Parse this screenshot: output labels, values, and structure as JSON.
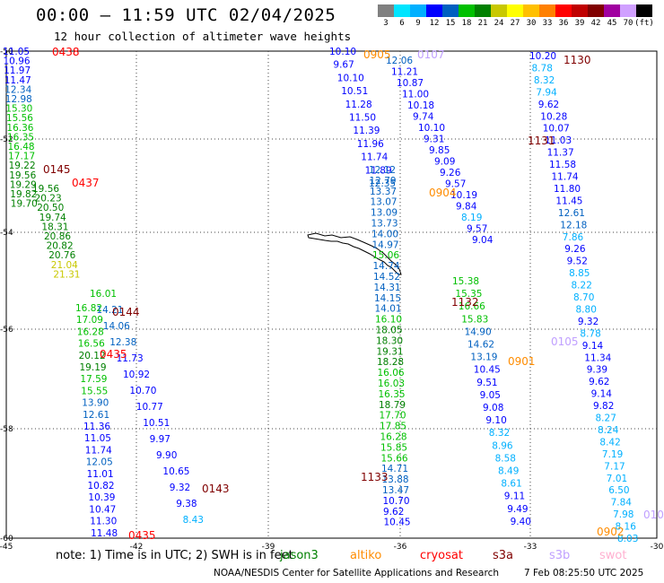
{
  "title": "00:00 – 11:59 UTC 02/04/2025",
  "subtitle": "12 hour collection of altimeter wave heights",
  "colorbar": {
    "labels": [
      "3",
      "6",
      "9",
      "12",
      "15",
      "18",
      "21",
      "24",
      "27",
      "30",
      "33",
      "36",
      "39",
      "42",
      "45",
      "70",
      "(ft)"
    ],
    "colors": [
      "#808080",
      "#00e5ff",
      "#00b0ff",
      "#0000ff",
      "#0060c0",
      "#00c000",
      "#008000",
      "#c8c800",
      "#ffff00",
      "#ffc000",
      "#ff8000",
      "#ff0000",
      "#c00000",
      "#800000",
      "#a000a0",
      "#d0a0ff",
      "#000000"
    ]
  },
  "map": {
    "lat_labels": [
      "-50",
      "-52",
      "-54",
      "-56",
      "-58",
      "-60"
    ],
    "lon_labels": [
      "-45",
      "-42",
      "-39",
      "-36",
      "-33",
      "-30"
    ]
  },
  "note": "note:  1) Time is in UTC; 2) SWH is in feet",
  "legend": [
    {
      "name": "jason3",
      "color": "#008000"
    },
    {
      "name": "altiko",
      "color": "#ff8c00"
    },
    {
      "name": "cryosat",
      "color": "#ff0000"
    },
    {
      "name": "s3a",
      "color": "#800000"
    },
    {
      "name": "s3b",
      "color": "#c0a0ff"
    },
    {
      "name": "swot",
      "color": "#ffb0d0"
    }
  ],
  "credit": "NOAA/NESDIS Center for Satellite Applications and Research",
  "timestamp": "7 Feb 08:25:50 UTC 2025",
  "pass_times": [
    {
      "text": "0438",
      "color": "#ff0000"
    },
    {
      "text": "0145",
      "color": "#800000"
    },
    {
      "text": "0437",
      "color": "#ff0000"
    },
    {
      "text": "0144",
      "color": "#800000"
    },
    {
      "text": "0435",
      "color": "#ff0000"
    },
    {
      "text": "0143",
      "color": "#800000"
    },
    {
      "text": "0435",
      "color": "#ff0000"
    },
    {
      "text": "0905",
      "color": "#ff8c00"
    },
    {
      "text": "0107",
      "color": "#c0a0ff"
    },
    {
      "text": "0904",
      "color": "#ff8c00"
    },
    {
      "text": "1132",
      "color": "#800000"
    },
    {
      "text": "1133",
      "color": "#800000"
    },
    {
      "text": "1130",
      "color": "#800000"
    },
    {
      "text": "1131",
      "color": "#800000"
    },
    {
      "text": "0105",
      "color": "#c0a0ff"
    },
    {
      "text": "0901",
      "color": "#ff8c00"
    },
    {
      "text": "0902",
      "color": "#ff8c00"
    },
    {
      "text": "010",
      "color": "#c0a0ff"
    }
  ],
  "tracks": [
    {
      "name": "track-west-a",
      "values": [
        "11.05",
        "10.96",
        "11.97",
        "11.47",
        "12.34",
        "12.98",
        "15.30",
        "15.56",
        "16.36",
        "16.35",
        "16.48",
        "17.17",
        "19.22",
        "19.56",
        "19.29",
        "19.82",
        "19.70"
      ]
    },
    {
      "name": "track-west-b",
      "values": [
        "19.56",
        "20.23",
        "20.50",
        "19.74",
        "18.31",
        "20.86",
        "20.82",
        "20.76",
        "21.04",
        "21.31"
      ]
    },
    {
      "name": "track-west-c",
      "values": [
        "16.82",
        "17.09",
        "16.28",
        "16.56",
        "20.12",
        "19.19",
        "17.59",
        "15.55",
        "13.90",
        "12.61",
        "11.36",
        "11.05",
        "11.74",
        "12.05",
        "11.01",
        "10.82",
        "10.39",
        "10.47",
        "11.30",
        "11.48"
      ]
    },
    {
      "name": "track-west-d",
      "values": [
        "16.01",
        "14.21",
        "14.06",
        "12.38",
        "11.73",
        "10.92",
        "10.70",
        "10.77",
        "10.51",
        "9.97",
        "9.90",
        "10.65",
        "9.32",
        "9.38",
        "8.43"
      ]
    },
    {
      "name": "track-mid-a",
      "values": [
        "10.10",
        "9.67",
        "10.10",
        "10.51",
        "11.28",
        "11.50",
        "11.39",
        "11.96",
        "11.74",
        "11.89",
        "12.35"
      ]
    },
    {
      "name": "track-mid-b",
      "values": [
        "12.06",
        "11.21",
        "10.87",
        "11.00",
        "10.18",
        "9.74",
        "10.10",
        "9.31",
        "9.85",
        "9.09",
        "9.26",
        "9.57",
        "10.19",
        "9.84",
        "8.19",
        "9.57",
        "9.04"
      ]
    },
    {
      "name": "track-mid-c",
      "values": [
        "12.12",
        "12.79",
        "13.37",
        "13.07",
        "13.09",
        "13.73",
        "14.00",
        "14.97",
        "15.06",
        "14.74",
        "14.52",
        "14.31",
        "14.15",
        "14.01",
        "16.10",
        "18.05",
        "18.30",
        "19.31",
        "18.28",
        "16.06",
        "16.03",
        "16.35",
        "18.79",
        "17.70",
        "17.85",
        "16.28",
        "15.85",
        "15.66",
        "14.71",
        "13.88",
        "13.47",
        "10.70",
        "9.62",
        "10.45"
      ]
    },
    {
      "name": "track-mid-d",
      "values": [
        "15.38",
        "15.35",
        "16.66",
        "15.83",
        "14.90",
        "14.62",
        "13.19",
        "10.45",
        "9.51",
        "9.05",
        "9.08",
        "9.10",
        "8.32",
        "8.96",
        "8.58",
        "8.49",
        "8.61",
        "9.11",
        "9.49",
        "9.40"
      ]
    },
    {
      "name": "track-east-a",
      "values": [
        "10.20",
        "8.78",
        "8.32",
        "7.94",
        "9.62",
        "10.28",
        "10.07",
        "11.03",
        "11.37",
        "11.58",
        "11.74",
        "11.80",
        "11.45",
        "12.61",
        "12.18",
        "7.86",
        "9.26",
        "9.52",
        "8.85",
        "8.22",
        "8.70",
        "8.80",
        "9.32",
        "8.78",
        "9.14",
        "11.34",
        "9.39",
        "9.62",
        "9.14",
        "9.82",
        "8.27",
        "8.24",
        "8.42",
        "7.19",
        "7.17",
        "7.01",
        "6.50",
        "7.84",
        "7.98",
        "8.16",
        "8.03"
      ]
    }
  ]
}
